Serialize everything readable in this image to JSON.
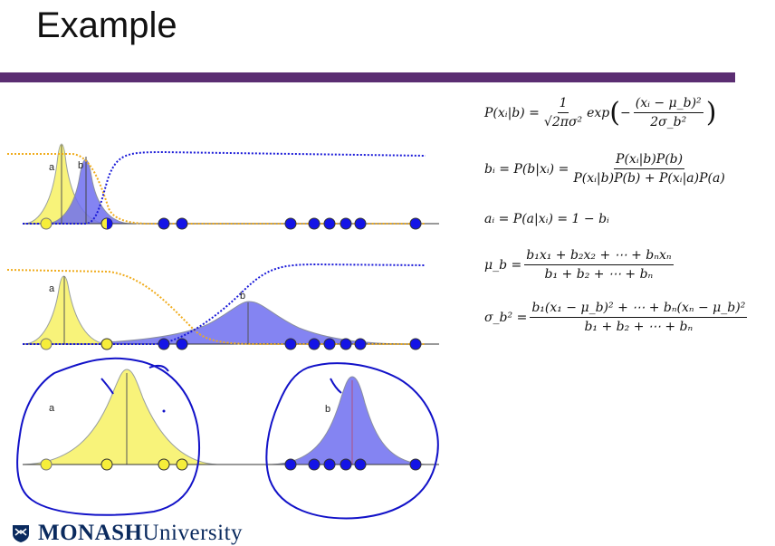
{
  "slide": {
    "title": "Example"
  },
  "colors": {
    "title_bar": "#5b2d72",
    "class_a_fill": "#f8f37a",
    "class_b_fill": "#6e6ff0",
    "curve_a": "#f0ac1d",
    "curve_b": "#1a1ad8",
    "point_blue": "#1414e6",
    "point_yellow": "#f6ee3a",
    "ink": "#1212c8"
  },
  "figure": {
    "row1": {
      "label_a": "a",
      "label_b": "b"
    },
    "row2": {
      "label_a": "a",
      "label_b": "b"
    },
    "row3": {
      "label_a": "a",
      "label_b": "b"
    }
  },
  "equations": {
    "eq1": {
      "lhs": "P(xᵢ|b) =",
      "num": "1",
      "den": "√2πσ²",
      "mid": "exp",
      "minus": "−",
      "inner_num": "(xᵢ − μ_b)²",
      "inner_den": "2σ_b²"
    },
    "eq2": {
      "lhs": "bᵢ = P(b|xᵢ) =",
      "num": "P(xᵢ|b)P(b)",
      "den": "P(xᵢ|b)P(b) + P(xᵢ|a)P(a)"
    },
    "eq3": {
      "text": "aᵢ = P(a|xᵢ) = 1 − bᵢ"
    },
    "eq4": {
      "lhs": "μ_b =",
      "num": "b₁x₁ + b₂x₂ + ⋯ + bₙxₙ",
      "den": "b₁ + b₂ + ⋯ + bₙ"
    },
    "eq5": {
      "lhs": "σ_b² =",
      "num": "b₁(x₁ − μ_b)² + ⋯ + bₙ(xₙ − μ_b)²",
      "den": "b₁ + b₂ + ⋯ + bₙ"
    }
  },
  "footer": {
    "logo_icon": "monash-shield-icon",
    "brand_bold": "MONASH",
    "brand_light": "University"
  }
}
